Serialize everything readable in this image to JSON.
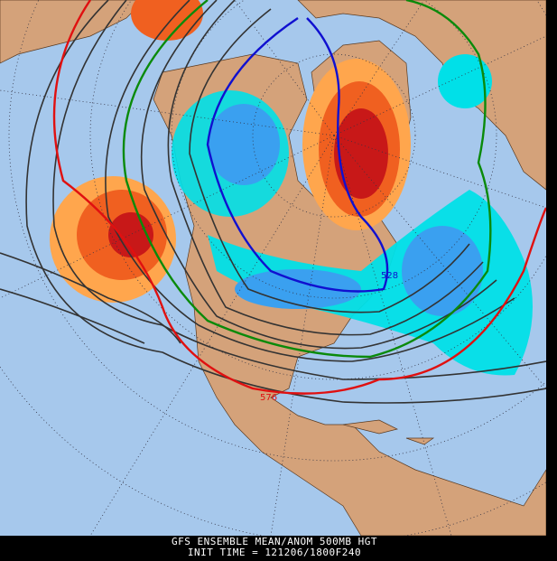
{
  "title": "GFS ENSEMBLE MEAN/ANOM 500MB HGT",
  "subtitle": "INIT TIME = 121206/1800F240",
  "contour_labels": [
    "528",
    "576"
  ]
}
